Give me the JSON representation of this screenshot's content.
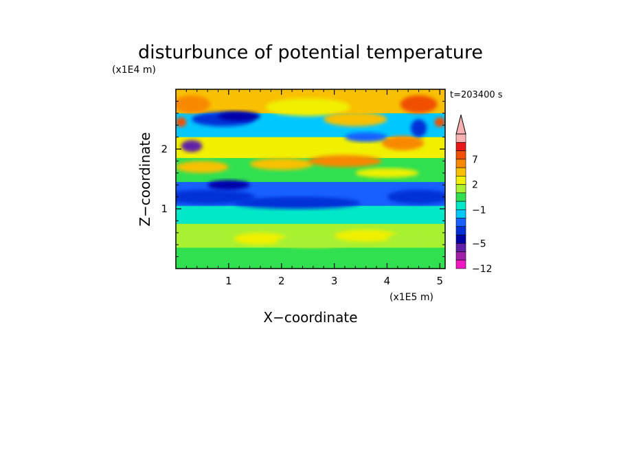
{
  "chart_data": {
    "type": "heatmap",
    "title": "disturbunce of potential temperature",
    "xlabel": "X−coordinate",
    "ylabel": "Z−coordinate",
    "x_unit": "(x1E5 m)",
    "y_unit": "(x1E4 m)",
    "time_label": "t=203400 s",
    "xlim": [
      0,
      5.1
    ],
    "ylim": [
      0,
      3.0
    ],
    "x_ticks": [
      1,
      2,
      3,
      4,
      5
    ],
    "x_tick_labels": [
      "1",
      "2",
      "3",
      "4",
      "5"
    ],
    "y_ticks": [
      1,
      2
    ],
    "y_tick_labels": [
      "1",
      "2"
    ],
    "colorbar": {
      "levels": [
        -12,
        -9,
        -7,
        -5,
        -4,
        -3,
        -2,
        -1,
        0,
        1,
        2,
        3,
        5,
        7,
        8,
        9
      ],
      "labeled_levels": [
        -12,
        -5,
        -1,
        2,
        7
      ],
      "tick_labels": [
        "−12",
        "−5",
        "−1",
        "2",
        "7"
      ],
      "colors": [
        "#f018c0",
        "#a020a8",
        "#6020a8",
        "#0000a8",
        "#0030d8",
        "#1860ff",
        "#00c8ff",
        "#00e8c8",
        "#30e050",
        "#a8f030",
        "#f0f000",
        "#f8c000",
        "#f88800",
        "#f05000",
        "#e81818",
        "#f8b0b0"
      ],
      "extend": "max"
    },
    "grid": false,
    "field_description_rows": [
      {
        "z_range": [
          0.0,
          0.35
        ],
        "dominant_level": 0
      },
      {
        "z_range": [
          0.35,
          0.75
        ],
        "dominant_level": 1
      },
      {
        "z_range": [
          0.75,
          1.05
        ],
        "dominant_level": -1
      },
      {
        "z_range": [
          1.05,
          1.45
        ],
        "dominant_level": -3
      },
      {
        "z_range": [
          1.45,
          1.85
        ],
        "dominant_level": 0
      },
      {
        "z_range": [
          1.85,
          2.2
        ],
        "dominant_level": 2
      },
      {
        "z_range": [
          2.2,
          2.6
        ],
        "dominant_level": -2
      },
      {
        "z_range": [
          2.6,
          3.0
        ],
        "dominant_level": 3
      }
    ]
  }
}
